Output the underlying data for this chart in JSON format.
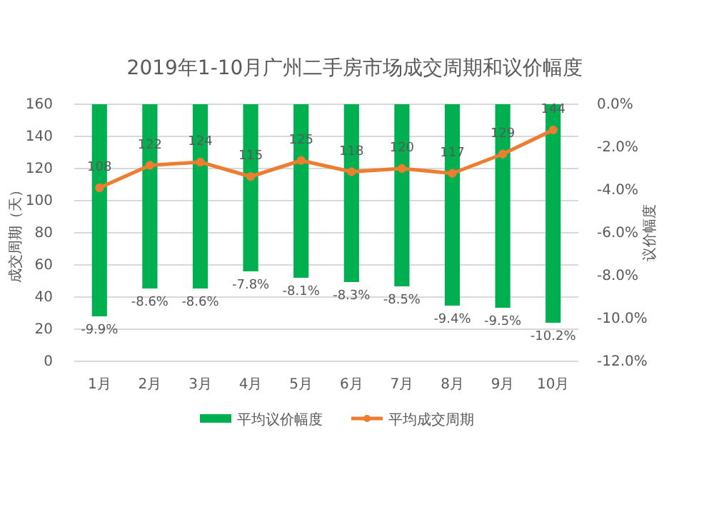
{
  "chart_data": {
    "type": "bar",
    "title": "2019年1-10月广州二手房市场成交周期和议价幅度",
    "ylabel": "成交周期（天）",
    "y2label": "议价幅度",
    "categories": [
      "1月",
      "2月",
      "3月",
      "4月",
      "5月",
      "6月",
      "7月",
      "8月",
      "9月",
      "10月"
    ],
    "series": [
      {
        "name": "平均议价幅度",
        "axis": "y2",
        "color": "#00b050",
        "values": [
          -9.9,
          -8.6,
          -8.6,
          -7.8,
          -8.1,
          -8.3,
          -8.5,
          -9.4,
          -9.5,
          -10.2
        ],
        "value_labels": [
          "-9.9%",
          "-8.6%",
          "-8.6%",
          "-7.8%",
          "-8.1%",
          "-8.3%",
          "-8.5%",
          "-9.4%",
          "-9.5%",
          "-10.2%"
        ]
      },
      {
        "name": "平均成交周期",
        "type": "line",
        "color": "#ed7d31",
        "marker": "circle",
        "values": [
          108,
          122,
          124,
          115,
          125,
          118,
          120,
          117,
          129,
          144
        ],
        "value_labels": [
          "108",
          "122",
          "124",
          "115",
          "125",
          "118",
          "120",
          "117",
          "129",
          "144"
        ]
      }
    ],
    "ylim": [
      0,
      160
    ],
    "yticks": [
      0,
      20,
      40,
      60,
      80,
      100,
      120,
      140,
      160
    ],
    "y2lim": [
      -12,
      0
    ],
    "y2ticks": [
      {
        "value": -12,
        "label": "-12.0%"
      },
      {
        "value": -10,
        "label": "-10.0%"
      },
      {
        "value": -8,
        "label": "-8.0%"
      },
      {
        "value": -6,
        "label": "-6.0%"
      },
      {
        "value": -4,
        "label": "-4.0%"
      },
      {
        "value": -2,
        "label": "-2.0%"
      },
      {
        "value": 0,
        "label": "0.0%"
      }
    ],
    "grid": "y",
    "legend": "bottom"
  }
}
